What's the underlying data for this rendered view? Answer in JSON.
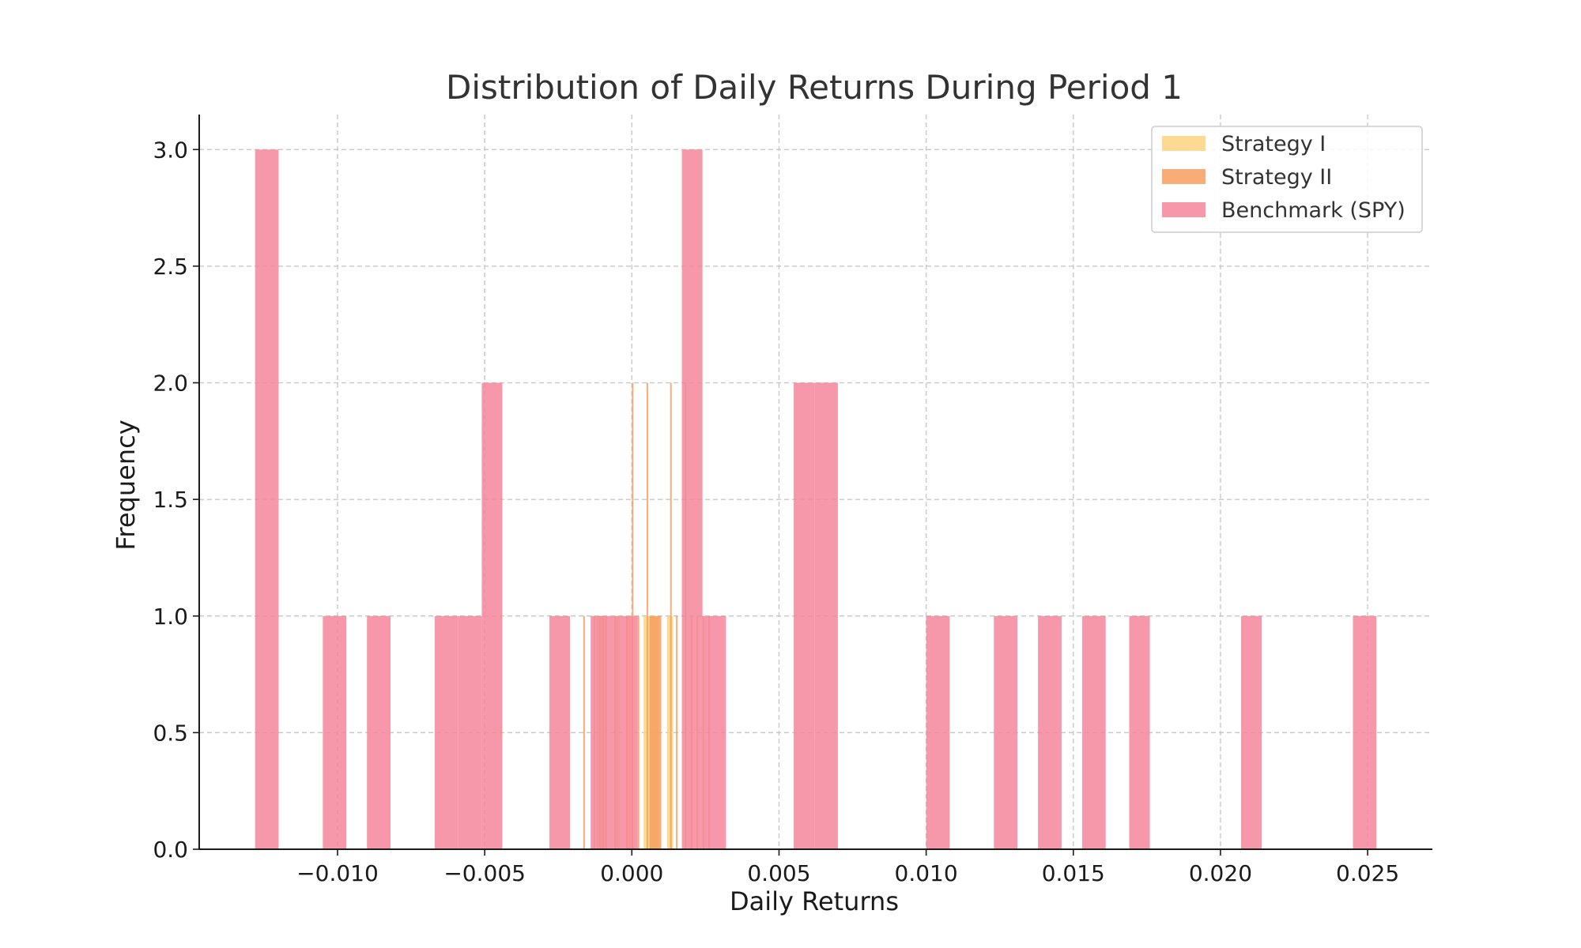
{
  "chart_data": {
    "type": "bar",
    "subtype": "overlapping-histogram",
    "title": "Distribution of Daily Returns During Period 1",
    "xlabel": "Daily Returns",
    "ylabel": "Frequency",
    "xlim": [
      -0.0147,
      0.0272
    ],
    "ylim": [
      0,
      3.15
    ],
    "x_ticks": [
      -0.01,
      -0.005,
      0.0,
      0.005,
      0.01,
      0.015,
      0.02,
      0.025
    ],
    "x_tick_labels": [
      "−0.010",
      "−0.005",
      "0.000",
      "0.005",
      "0.010",
      "0.015",
      "0.020",
      "0.025"
    ],
    "y_ticks": [
      0.0,
      0.5,
      1.0,
      1.5,
      2.0,
      2.5,
      3.0
    ],
    "y_tick_labels": [
      "0.0",
      "0.5",
      "1.0",
      "1.5",
      "2.0",
      "2.5",
      "3.0"
    ],
    "grid": true,
    "legend_position": "top-right",
    "series": [
      {
        "name": "Strategy I",
        "color": "#fdd37e",
        "bins": [
          {
            "x0": -0.0012,
            "x1": -0.0009,
            "count": 1
          },
          {
            "x0": -0.0006,
            "x1": -0.0004,
            "count": 1
          },
          {
            "x0": -0.0002,
            "x1": 0.0,
            "count": 1
          },
          {
            "x0": 0.0004,
            "x1": 0.0009,
            "count": 1
          },
          {
            "x0": 0.0012,
            "x1": 0.0014,
            "count": 1
          }
        ]
      },
      {
        "name": "Strategy II",
        "color": "#f79e5f",
        "bins": [
          {
            "x0": -0.00165,
            "x1": -0.0016,
            "count": 1
          },
          {
            "x0": -0.0013,
            "x1": -0.00125,
            "count": 1
          },
          {
            "x0": -0.0011,
            "x1": -0.00105,
            "count": 1
          },
          {
            "x0": -0.001,
            "x1": -0.00095,
            "count": 1
          },
          {
            "x0": -0.0009,
            "x1": -0.00085,
            "count": 1
          },
          {
            "x0": -0.0006,
            "x1": -0.00055,
            "count": 1
          },
          {
            "x0": -0.0002,
            "x1": -0.00015,
            "count": 1
          },
          {
            "x0": 0.0,
            "x1": 5e-05,
            "count": 2
          },
          {
            "x0": 0.0002,
            "x1": 0.00025,
            "count": 1
          },
          {
            "x0": 0.0005,
            "x1": 0.00055,
            "count": 2
          },
          {
            "x0": 0.0006,
            "x1": 0.001,
            "count": 1
          },
          {
            "x0": 0.0013,
            "x1": 0.00135,
            "count": 2
          },
          {
            "x0": 0.0015,
            "x1": 0.00155,
            "count": 1
          },
          {
            "x0": 0.0018,
            "x1": 0.00185,
            "count": 2
          },
          {
            "x0": 0.002,
            "x1": 0.00205,
            "count": 1
          },
          {
            "x0": 0.0022,
            "x1": 0.00225,
            "count": 1
          },
          {
            "x0": 0.0024,
            "x1": 0.00245,
            "count": 1
          },
          {
            "x0": 0.0026,
            "x1": 0.00265,
            "count": 1
          }
        ]
      },
      {
        "name": "Benchmark (SPY)",
        "color": "#f5869b",
        "bins": [
          {
            "x0": -0.0128,
            "x1": -0.012,
            "count": 3
          },
          {
            "x0": -0.0105,
            "x1": -0.0097,
            "count": 1
          },
          {
            "x0": -0.009,
            "x1": -0.0082,
            "count": 1
          },
          {
            "x0": -0.0067,
            "x1": -0.0059,
            "count": 1
          },
          {
            "x0": -0.0059,
            "x1": -0.0051,
            "count": 1
          },
          {
            "x0": -0.0051,
            "x1": -0.0044,
            "count": 2
          },
          {
            "x0": -0.0028,
            "x1": -0.0021,
            "count": 1
          },
          {
            "x0": -0.0014,
            "x1": -0.0006,
            "count": 1
          },
          {
            "x0": -0.0006,
            "x1": 0.0002,
            "count": 1
          },
          {
            "x0": 0.0017,
            "x1": 0.0024,
            "count": 3
          },
          {
            "x0": 0.0024,
            "x1": 0.0032,
            "count": 1
          },
          {
            "x0": 0.0055,
            "x1": 0.0062,
            "count": 2
          },
          {
            "x0": 0.0062,
            "x1": 0.007,
            "count": 2
          },
          {
            "x0": 0.01,
            "x1": 0.0108,
            "count": 1
          },
          {
            "x0": 0.0123,
            "x1": 0.0131,
            "count": 1
          },
          {
            "x0": 0.0138,
            "x1": 0.0146,
            "count": 1
          },
          {
            "x0": 0.0153,
            "x1": 0.0161,
            "count": 1
          },
          {
            "x0": 0.0169,
            "x1": 0.0176,
            "count": 1
          },
          {
            "x0": 0.0207,
            "x1": 0.0214,
            "count": 1
          },
          {
            "x0": 0.0245,
            "x1": 0.0253,
            "count": 1
          }
        ]
      }
    ]
  }
}
